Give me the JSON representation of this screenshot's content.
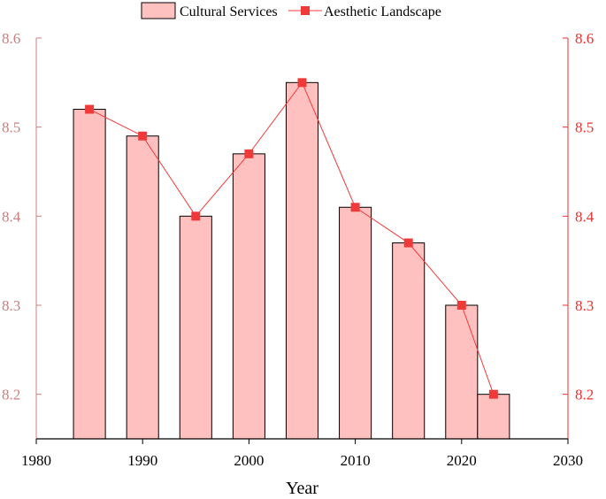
{
  "chart_data": {
    "type": "bar+line",
    "xlabel": "Year",
    "xlim": [
      1980,
      2030
    ],
    "x_ticks": [
      1980,
      1990,
      2000,
      2010,
      2020,
      2030
    ],
    "ylim": [
      8.15,
      8.6
    ],
    "y_ticks": [
      8.2,
      8.3,
      8.4,
      8.5,
      8.6
    ],
    "y_tick_labels": [
      "8.2",
      "8.3",
      "8.4",
      "8.5",
      "8.6"
    ],
    "x_tick_labels": [
      "1980",
      "1990",
      "2000",
      "2010",
      "2020",
      "2030"
    ],
    "bar_width_years": 3,
    "series": [
      {
        "name": "Cultural Services",
        "type": "bar",
        "x": [
          1985,
          1990,
          1995,
          2000,
          2005,
          2010,
          2015,
          2020,
          2023
        ],
        "values": [
          8.52,
          8.49,
          8.4,
          8.47,
          8.55,
          8.41,
          8.37,
          8.3,
          8.2
        ]
      },
      {
        "name": "Aesthetic Landscape",
        "type": "line",
        "x": [
          1985,
          1990,
          1995,
          2000,
          2005,
          2010,
          2015,
          2020,
          2023
        ],
        "values": [
          8.52,
          8.49,
          8.4,
          8.47,
          8.55,
          8.41,
          8.37,
          8.3,
          8.2
        ]
      }
    ],
    "legend_position": "top",
    "grid": false
  },
  "colors": {
    "bar_fill": "#ffc0c0",
    "bar_stroke": "#000000",
    "line": "#f03a3a",
    "marker": "#f03a3a",
    "axis_left": "#c98080",
    "axis_right": "#ee3030",
    "axis_x": "#000000"
  }
}
